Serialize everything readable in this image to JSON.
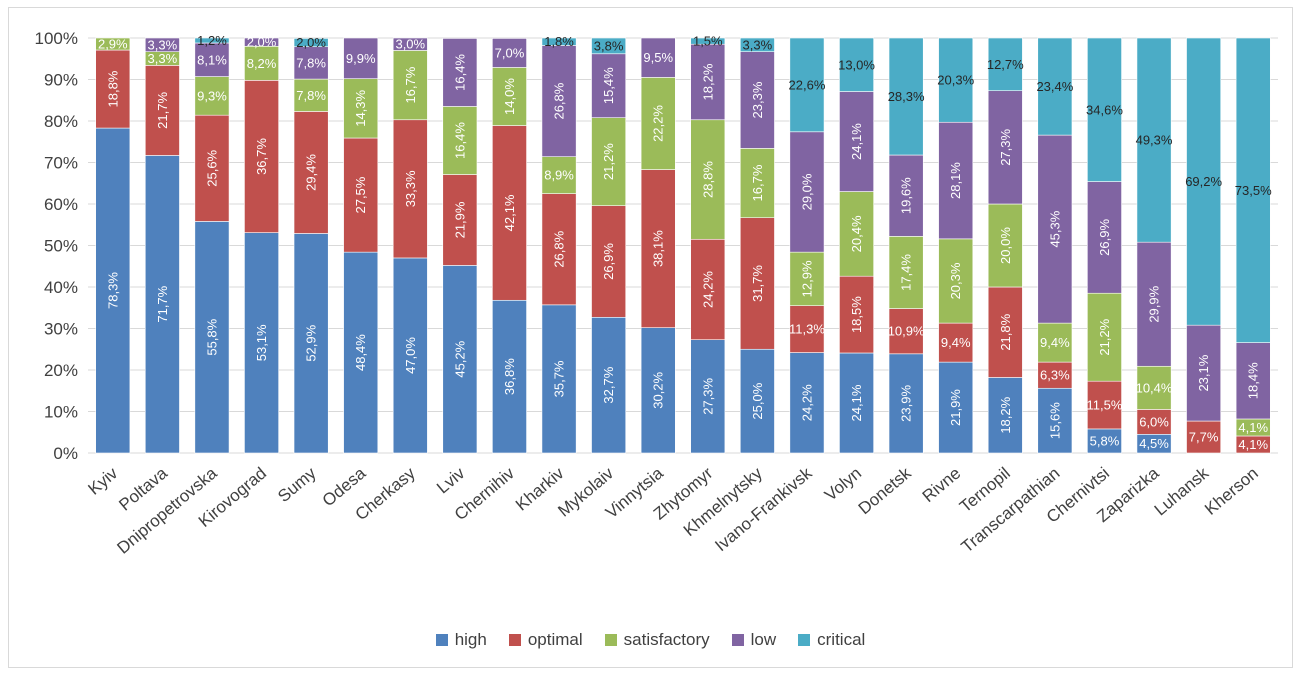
{
  "chart_data": {
    "type": "bar",
    "stacked": true,
    "percent_scale": true,
    "categories": [
      "Kyiv",
      "Poltava",
      "Dnipropetrovska",
      "Kirovograd",
      "Sumy",
      "Odesa",
      "Cherkasy",
      "Lviv",
      "Chernihiv",
      "Kharkiv",
      "Mykolaiv",
      "Vinnytsia",
      "Zhytomyr",
      "Khmelnytsky",
      "Ivano-Frankivsk",
      "Volyn",
      "Donetsk",
      "Rivne",
      "Ternopil",
      "Transcarpathian",
      "Chernivtsi",
      "Zaparizka",
      "Luhansk",
      "Kherson"
    ],
    "series": [
      {
        "name": "high",
        "color": "#4F81BD",
        "values": [
          78.3,
          71.7,
          55.8,
          53.1,
          52.9,
          48.4,
          47.0,
          45.2,
          36.8,
          35.7,
          32.7,
          30.2,
          27.3,
          25.0,
          24.2,
          24.1,
          23.9,
          21.9,
          18.2,
          15.6,
          5.8,
          4.5,
          0,
          0
        ],
        "labels": [
          "78,3%",
          "71,7%",
          "55,8%",
          "53,1%",
          "52,9%",
          "48,4%",
          "47,0%",
          "45,2%",
          "36,8%",
          "35,7%",
          "32,7%",
          "30,2%",
          "27,3%",
          "25,0%",
          "24,2%",
          "24,1%",
          "23,9%",
          "21,9%",
          "18,2%",
          "15,6%",
          "5,8%",
          "4,5%",
          "",
          ""
        ]
      },
      {
        "name": "optimal",
        "color": "#C0504D",
        "values": [
          18.8,
          21.7,
          25.6,
          36.7,
          29.4,
          27.5,
          33.3,
          21.9,
          42.1,
          26.8,
          26.9,
          38.1,
          24.2,
          31.7,
          11.3,
          18.5,
          10.9,
          9.4,
          21.8,
          6.3,
          11.5,
          6.0,
          7.7,
          4.1
        ],
        "labels": [
          "18,8%",
          "21,7%",
          "25,6%",
          "36,7%",
          "29,4%",
          "27,5%",
          "33,3%",
          "21,9%",
          "42,1%",
          "26,8%",
          "26,9%",
          "38,1%",
          "24,2%",
          "31,7%",
          "11,3%",
          "18,5%",
          "10,9%",
          "9,4%",
          "21,8%",
          "6,3%",
          "11,5%",
          "6,0%",
          "7,7%",
          "4,1%"
        ]
      },
      {
        "name": "satisfactory",
        "color": "#9BBB59",
        "values": [
          2.9,
          3.3,
          9.3,
          8.2,
          7.8,
          14.3,
          16.7,
          16.4,
          14.0,
          8.9,
          21.2,
          22.2,
          28.8,
          16.7,
          12.9,
          20.4,
          17.4,
          20.3,
          20.0,
          9.4,
          21.2,
          10.4,
          0,
          4.1
        ],
        "labels": [
          "2,9%",
          "3,3%",
          "9,3%",
          "8,2%",
          "7,8%",
          "14,3%",
          "16,7%",
          "16,4%",
          "14,0%",
          "8,9%",
          "21,2%",
          "22,2%",
          "28,8%",
          "16,7%",
          "12,9%",
          "20,4%",
          "17,4%",
          "20,3%",
          "20,0%",
          "9,4%",
          "21,2%",
          "10,4%",
          "",
          "4,1%"
        ]
      },
      {
        "name": "low",
        "color": "#8064A2",
        "values": [
          0,
          3.3,
          8.1,
          2.0,
          7.8,
          9.9,
          3.0,
          16.4,
          7.0,
          26.8,
          15.4,
          9.5,
          18.2,
          23.3,
          29.0,
          24.1,
          19.6,
          28.1,
          27.3,
          45.3,
          26.9,
          29.9,
          23.1,
          18.4
        ],
        "labels": [
          "",
          "3,3%",
          "8,1%",
          "2,0%",
          "7,8%",
          "9,9%",
          "3,0%",
          "16,4%",
          "7,0%",
          "26,8%",
          "15,4%",
          "9,5%",
          "18,2%",
          "23,3%",
          "29,0%",
          "24,1%",
          "19,6%",
          "28,1%",
          "27,3%",
          "45,3%",
          "26,9%",
          "29,9%",
          "23,1%",
          "18,4%"
        ]
      },
      {
        "name": "critical",
        "color": "#4BACC6",
        "values": [
          0,
          0,
          1.2,
          0,
          2.0,
          0,
          0,
          0,
          0,
          1.8,
          3.8,
          0,
          1.5,
          3.3,
          22.6,
          13.0,
          28.3,
          20.3,
          12.7,
          23.4,
          34.6,
          49.3,
          69.2,
          73.5
        ],
        "labels": [
          "",
          "",
          "1,2%",
          "",
          "2,0%",
          "",
          "",
          "",
          "",
          "1,8%",
          "3,8%",
          "",
          "1,5%",
          "3,3%",
          "22,6%",
          "13,0%",
          "28,3%",
          "20,3%",
          "12,7%",
          "23,4%",
          "34,6%",
          "49,3%",
          "69,2%",
          "73,5%"
        ]
      }
    ],
    "y_ticks": [
      "0%",
      "10%",
      "20%",
      "30%",
      "40%",
      "50%",
      "60%",
      "70%",
      "80%",
      "90%",
      "100%"
    ],
    "ylim": [
      0,
      100
    ],
    "grid": true,
    "legend_position": "bottom",
    "title": "",
    "xlabel": "",
    "ylabel": ""
  }
}
